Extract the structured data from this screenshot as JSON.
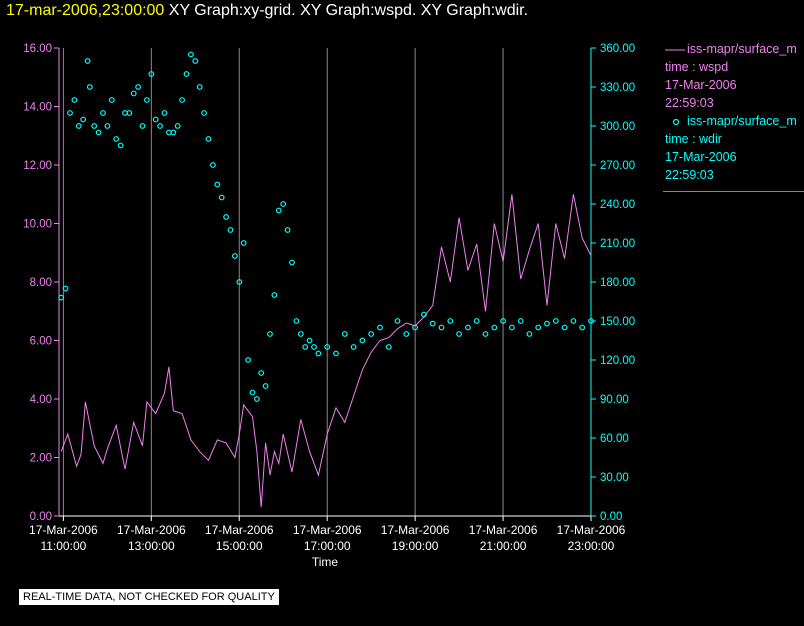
{
  "header": {
    "timestamp": "17-mar-2006,23:00:00",
    "title": "XY Graph:xy-grid.  XY Graph:wspd.  XY Graph:wdir."
  },
  "legend": [
    {
      "name": "iss-mapr/surface_m",
      "sub": "time : wspd",
      "date": "17-Mar-2006",
      "time": "22:59:03",
      "color": "#ee82ee",
      "marker": "line"
    },
    {
      "name": "iss-mapr/surface_m",
      "sub": "time : wdir",
      "date": "17-Mar-2006",
      "time": "22:59:03",
      "color": "#00ffff",
      "marker": "circle"
    }
  ],
  "footer": "REAL-TIME DATA, NOT CHECKED FOR QUALITY",
  "chart_data": {
    "type": "line",
    "xlabel": "Time",
    "x_range_hours": [
      10.9,
      23.0
    ],
    "x_ticks": [
      {
        "hour": 11,
        "date": "17-Mar-2006",
        "time": "11:00:00"
      },
      {
        "hour": 13,
        "date": "17-Mar-2006",
        "time": "13:00:00"
      },
      {
        "hour": 15,
        "date": "17-Mar-2006",
        "time": "15:00:00"
      },
      {
        "hour": 17,
        "date": "17-Mar-2006",
        "time": "17:00:00"
      },
      {
        "hour": 19,
        "date": "17-Mar-2006",
        "time": "19:00:00"
      },
      {
        "hour": 21,
        "date": "17-Mar-2006",
        "time": "21:00:00"
      },
      {
        "hour": 23,
        "date": "17-Mar-2006",
        "time": "23:00:00"
      }
    ],
    "y_left": {
      "ylim": [
        0,
        16
      ],
      "ticks": [
        "0.00",
        "2.00",
        "4.00",
        "6.00",
        "8.00",
        "10.00",
        "12.00",
        "14.00",
        "16.00"
      ],
      "color": "#ee82ee"
    },
    "y_right": {
      "ylim": [
        0,
        360
      ],
      "ticks": [
        "0.00",
        "30.00",
        "60.00",
        "90.00",
        "120.00",
        "150.00",
        "180.00",
        "210.00",
        "240.00",
        "270.00",
        "300.00",
        "330.00",
        "360.00"
      ],
      "color": "#00ffff"
    },
    "grid": "vertical",
    "series": [
      {
        "name": "wspd",
        "axis": "left",
        "style": "line",
        "color": "#ee82ee",
        "x": [
          10.95,
          11.1,
          11.3,
          11.4,
          11.5,
          11.7,
          11.9,
          12.0,
          12.2,
          12.4,
          12.6,
          12.8,
          12.9,
          13.1,
          13.3,
          13.4,
          13.5,
          13.7,
          13.9,
          14.1,
          14.3,
          14.5,
          14.7,
          14.9,
          15.0,
          15.1,
          15.3,
          15.4,
          15.5,
          15.6,
          15.7,
          15.8,
          15.9,
          16.0,
          16.2,
          16.4,
          16.6,
          16.8,
          17.0,
          17.2,
          17.4,
          17.6,
          17.8,
          18.0,
          18.2,
          18.4,
          18.6,
          18.8,
          19.0,
          19.2,
          19.4,
          19.6,
          19.8,
          20.0,
          20.2,
          20.4,
          20.6,
          20.8,
          21.0,
          21.2,
          21.4,
          21.6,
          21.8,
          22.0,
          22.2,
          22.4,
          22.6,
          22.8,
          23.0
        ],
        "values": [
          2.2,
          2.8,
          1.7,
          2.1,
          3.9,
          2.4,
          1.8,
          2.3,
          3.1,
          1.6,
          3.2,
          2.4,
          3.9,
          3.5,
          4.2,
          5.1,
          3.6,
          3.5,
          2.6,
          2.2,
          1.9,
          2.6,
          2.5,
          2.0,
          2.8,
          3.8,
          3.4,
          2.2,
          0.3,
          2.5,
          1.4,
          2.2,
          1.8,
          2.8,
          1.5,
          3.3,
          2.2,
          1.4,
          2.8,
          3.7,
          3.2,
          4.1,
          5.0,
          5.6,
          6.0,
          6.1,
          6.4,
          6.6,
          6.5,
          6.8,
          7.2,
          9.2,
          8.0,
          10.2,
          8.4,
          9.3,
          7.0,
          10.0,
          8.7,
          11.0,
          8.1,
          9.1,
          10.0,
          7.2,
          10.0,
          8.8,
          11.0,
          9.5,
          8.9
        ]
      },
      {
        "name": "wdir",
        "axis": "right",
        "style": "markers",
        "color": "#00ffff",
        "x": [
          10.95,
          11.05,
          11.15,
          11.25,
          11.35,
          11.45,
          11.55,
          11.6,
          11.7,
          11.8,
          11.9,
          12.0,
          12.1,
          12.2,
          12.3,
          12.4,
          12.5,
          12.6,
          12.7,
          12.8,
          12.9,
          13.0,
          13.1,
          13.2,
          13.3,
          13.4,
          13.5,
          13.6,
          13.7,
          13.8,
          13.9,
          14.0,
          14.1,
          14.2,
          14.3,
          14.4,
          14.5,
          14.6,
          14.7,
          14.8,
          14.9,
          15.0,
          15.1,
          15.2,
          15.3,
          15.4,
          15.5,
          15.6,
          15.7,
          15.8,
          15.9,
          16.0,
          16.1,
          16.2,
          16.3,
          16.4,
          16.5,
          16.6,
          16.7,
          16.8,
          17.0,
          17.2,
          17.4,
          17.6,
          17.8,
          18.0,
          18.2,
          18.4,
          18.6,
          18.8,
          19.0,
          19.2,
          19.4,
          19.6,
          19.8,
          20.0,
          20.2,
          20.4,
          20.6,
          20.8,
          21.0,
          21.2,
          21.4,
          21.6,
          21.8,
          22.0,
          22.2,
          22.4,
          22.6,
          22.8,
          23.0
        ],
        "values": [
          168,
          175,
          310,
          320,
          300,
          305,
          350,
          330,
          300,
          295,
          310,
          300,
          320,
          290,
          285,
          310,
          310,
          325,
          330,
          300,
          320,
          340,
          305,
          300,
          310,
          295,
          295,
          300,
          320,
          340,
          355,
          350,
          330,
          310,
          290,
          270,
          255,
          245,
          230,
          220,
          200,
          180,
          210,
          120,
          95,
          90,
          110,
          100,
          140,
          170,
          235,
          240,
          220,
          195,
          150,
          140,
          130,
          135,
          130,
          125,
          130,
          125,
          140,
          130,
          135,
          140,
          145,
          130,
          150,
          140,
          145,
          155,
          148,
          145,
          150,
          140,
          145,
          150,
          140,
          145,
          150,
          145,
          150,
          140,
          145,
          148,
          150,
          145,
          150,
          145,
          150
        ]
      }
    ]
  }
}
